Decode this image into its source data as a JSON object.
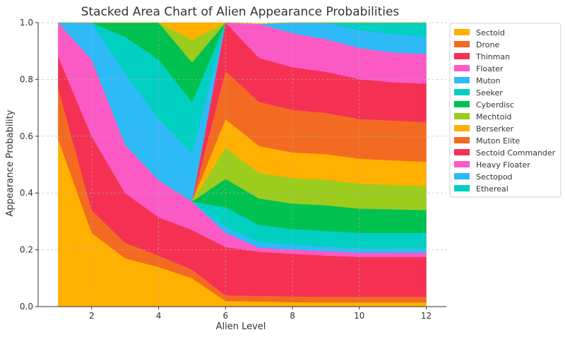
{
  "chart_data": {
    "type": "area",
    "stacked": true,
    "title": "Stacked Area Chart of Alien Appearance Probabilities",
    "xlabel": "Alien Level",
    "ylabel": "Appearance Probability",
    "x": [
      1,
      2,
      3,
      4,
      5,
      6,
      7,
      8,
      9,
      10,
      11,
      12
    ],
    "xlim": [
      0.4,
      12.6
    ],
    "ylim": [
      0,
      1.0
    ],
    "xticks": [
      2,
      4,
      6,
      8,
      10,
      12
    ],
    "yticks": [
      0.0,
      0.2,
      0.4,
      0.6,
      0.8,
      1.0
    ],
    "grid": true,
    "legend_position": "right",
    "series": [
      {
        "name": "Sectoid",
        "color": "#ffb000",
        "values": [
          0.59,
          0.26,
          0.17,
          0.14,
          0.1,
          0.02,
          0.018,
          0.016,
          0.015,
          0.015,
          0.015,
          0.015
        ]
      },
      {
        "name": "Drone",
        "color": "#f36b22",
        "values": [
          0.18,
          0.08,
          0.055,
          0.04,
          0.03,
          0.02,
          0.02,
          0.02,
          0.02,
          0.02,
          0.02,
          0.02
        ]
      },
      {
        "name": "Thinman",
        "color": "#f53153",
        "values": [
          0.11,
          0.26,
          0.175,
          0.135,
          0.14,
          0.17,
          0.155,
          0.15,
          0.145,
          0.14,
          0.14,
          0.14
        ]
      },
      {
        "name": "Floater",
        "color": "#fb5ac4",
        "values": [
          0.12,
          0.27,
          0.17,
          0.13,
          0.1,
          0.05,
          0.015,
          0.015,
          0.015,
          0.015,
          0.015,
          0.015
        ]
      },
      {
        "name": "Muton",
        "color": "#2dbaf7",
        "values": [
          0,
          0,
          0,
          0,
          0,
          0.02,
          0.02,
          0.017,
          0.017,
          0.015,
          0.015,
          0.015
        ]
      },
      {
        "name": "Seeker",
        "color": "#00cfc1",
        "values": [
          0,
          0,
          0,
          0,
          0,
          0.07,
          0.06,
          0.055,
          0.055,
          0.055,
          0.055,
          0.055
        ]
      },
      {
        "name": "Cyberdisc",
        "color": "#00c150",
        "values": [
          0,
          0,
          0,
          0,
          0,
          0.1,
          0.093,
          0.09,
          0.09,
          0.085,
          0.083,
          0.08
        ]
      },
      {
        "name": "Mechtoid",
        "color": "#9ccc1e",
        "values": [
          0,
          0,
          0,
          0,
          0,
          0.11,
          0.09,
          0.09,
          0.09,
          0.088,
          0.085,
          0.085
        ]
      },
      {
        "name": "Berserker",
        "color": "#ffb000",
        "values": [
          0,
          0,
          0,
          0,
          0,
          0.1,
          0.095,
          0.09,
          0.09,
          0.088,
          0.087,
          0.085
        ]
      },
      {
        "name": "Muton Elite",
        "color": "#f36b22",
        "values": [
          0,
          0,
          0,
          0,
          0,
          0.17,
          0.155,
          0.15,
          0.145,
          0.14,
          0.14,
          0.14
        ]
      },
      {
        "name": "Sectoid Commander",
        "color": "#f53153",
        "values": [
          0,
          0,
          0,
          0,
          0,
          0.17,
          0.155,
          0.15,
          0.145,
          0.14,
          0.135,
          0.135
        ]
      },
      {
        "name": "Heavy Floater",
        "color": "#fb5ac4",
        "values": [
          0,
          0,
          0,
          0,
          0,
          0.02,
          0.12,
          0.12,
          0.115,
          0.11,
          0.105,
          0.105
        ]
      },
      {
        "name": "Sectopod",
        "color": "#2dbaf7",
        "values": [
          0.0,
          0.13,
          0.25,
          0.215,
          0.17,
          0,
          0,
          0.037,
          0.06,
          0.062,
          0.065,
          0.06
        ]
      },
      {
        "name": "Ethereal",
        "color": "#00cfc1",
        "values": [
          0.0,
          0.0,
          0.13,
          0.21,
          0.18,
          0,
          0,
          0,
          0,
          0.027,
          0.045,
          0.055
        ]
      },
      {
        "name": "Cyberdisc",
        "color": "#00c150",
        "values": [
          0,
          0,
          0.05,
          0.17,
          0.14,
          0,
          0,
          0,
          0,
          0,
          0,
          0
        ]
      },
      {
        "name": "Mechtoid",
        "color": "#9ccc1e",
        "values": [
          0,
          0,
          0,
          0,
          0.08,
          0,
          0,
          0,
          0,
          0,
          0,
          0
        ]
      },
      {
        "name": "Berserker",
        "color": "#ffb000",
        "values": [
          0,
          0,
          0,
          0,
          0.06,
          0,
          0,
          0,
          0,
          0,
          0,
          0
        ]
      }
    ],
    "legend": [
      {
        "name": "Sectoid",
        "color": "#ffb000"
      },
      {
        "name": "Drone",
        "color": "#f36b22"
      },
      {
        "name": "Thinman",
        "color": "#f53153"
      },
      {
        "name": "Floater",
        "color": "#fb5ac4"
      },
      {
        "name": "Muton",
        "color": "#2dbaf7"
      },
      {
        "name": "Seeker",
        "color": "#00cfc1"
      },
      {
        "name": "Cyberdisc",
        "color": "#00c150"
      },
      {
        "name": "Mechtoid",
        "color": "#9ccc1e"
      },
      {
        "name": "Berserker",
        "color": "#ffb000"
      },
      {
        "name": "Muton Elite",
        "color": "#f36b22"
      },
      {
        "name": "Sectoid Commander",
        "color": "#f53153"
      },
      {
        "name": "Heavy Floater",
        "color": "#fb5ac4"
      },
      {
        "name": "Sectopod",
        "color": "#2dbaf7"
      },
      {
        "name": "Ethereal",
        "color": "#00cfc1"
      }
    ]
  }
}
